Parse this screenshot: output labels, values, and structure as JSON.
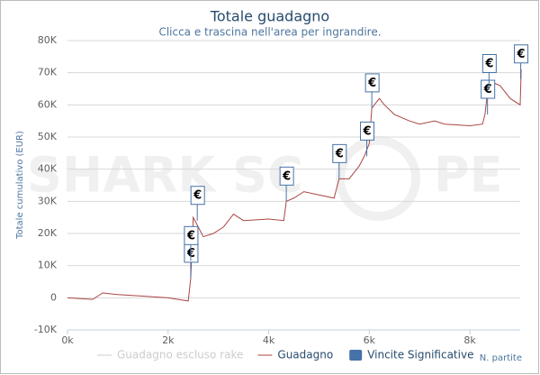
{
  "chart_data": {
    "type": "line",
    "title": "Totale guadagno",
    "subtitle": "Clicca e trascina nell'area per ingrandire.",
    "y_label": "Totale cumulativo (EUR)",
    "x_label": "N. partite",
    "watermark": [
      "SHARK SC",
      "PE"
    ],
    "flag_text": "€",
    "xlim": [
      0,
      9000
    ],
    "ylim": [
      -10000,
      80000
    ],
    "xticks": [
      {
        "value": 0,
        "label": "0k"
      },
      {
        "value": 2000,
        "label": "2k"
      },
      {
        "value": 4000,
        "label": "4k"
      },
      {
        "value": 6000,
        "label": "6k"
      },
      {
        "value": 8000,
        "label": "8k"
      }
    ],
    "yticks": [
      {
        "value": -10000,
        "label": "-10K"
      },
      0,
      {
        "value": 10000,
        "label": "10K"
      },
      {
        "value": 20000,
        "label": "20K"
      },
      {
        "value": 30000,
        "label": "30K"
      },
      {
        "value": 40000,
        "label": "40K"
      },
      {
        "value": 50000,
        "label": "50K"
      },
      {
        "value": 60000,
        "label": "60K"
      },
      {
        "value": 70000,
        "label": "70K"
      },
      {
        "value": 80000,
        "label": "80K"
      }
    ],
    "grid": true,
    "series": [
      {
        "name": "Guadagno escluso rake",
        "color": "#cccccc",
        "visible": false
      },
      {
        "name": "Guadagno",
        "color": "#aa4643",
        "x": [
          0,
          500,
          700,
          1000,
          1500,
          2000,
          2400,
          2450,
          2500,
          2600,
          2700,
          2900,
          3100,
          3300,
          3500,
          4000,
          4300,
          4350,
          4500,
          4700,
          5000,
          5300,
          5400,
          5600,
          5800,
          5900,
          6000,
          6050,
          6100,
          6200,
          6300,
          6500,
          6800,
          7000,
          7300,
          7500,
          8000,
          8250,
          8300,
          8350,
          8450,
          8600,
          8800,
          9000,
          9020
        ],
        "values": [
          0,
          -500,
          1500,
          1000,
          500,
          0,
          -1000,
          6000,
          25000,
          22000,
          19000,
          20000,
          22000,
          26000,
          24000,
          24500,
          24000,
          30000,
          31000,
          33000,
          32000,
          31000,
          37000,
          37000,
          41000,
          44000,
          48000,
          59000,
          60000,
          62000,
          60000,
          57000,
          55000,
          54000,
          55000,
          54000,
          53500,
          54000,
          57000,
          64000,
          67000,
          66000,
          62000,
          60000,
          71000
        ]
      },
      {
        "name": "Vincite Significative",
        "color": "#4572a7",
        "type": "flags",
        "x": [
          2450,
          2450,
          2580,
          4350,
          5400,
          5950,
          6050,
          8350,
          8380,
          9010
        ],
        "values": [
          6000,
          11500,
          24000,
          30000,
          37000,
          44000,
          59000,
          57000,
          65000,
          68000
        ]
      }
    ]
  }
}
